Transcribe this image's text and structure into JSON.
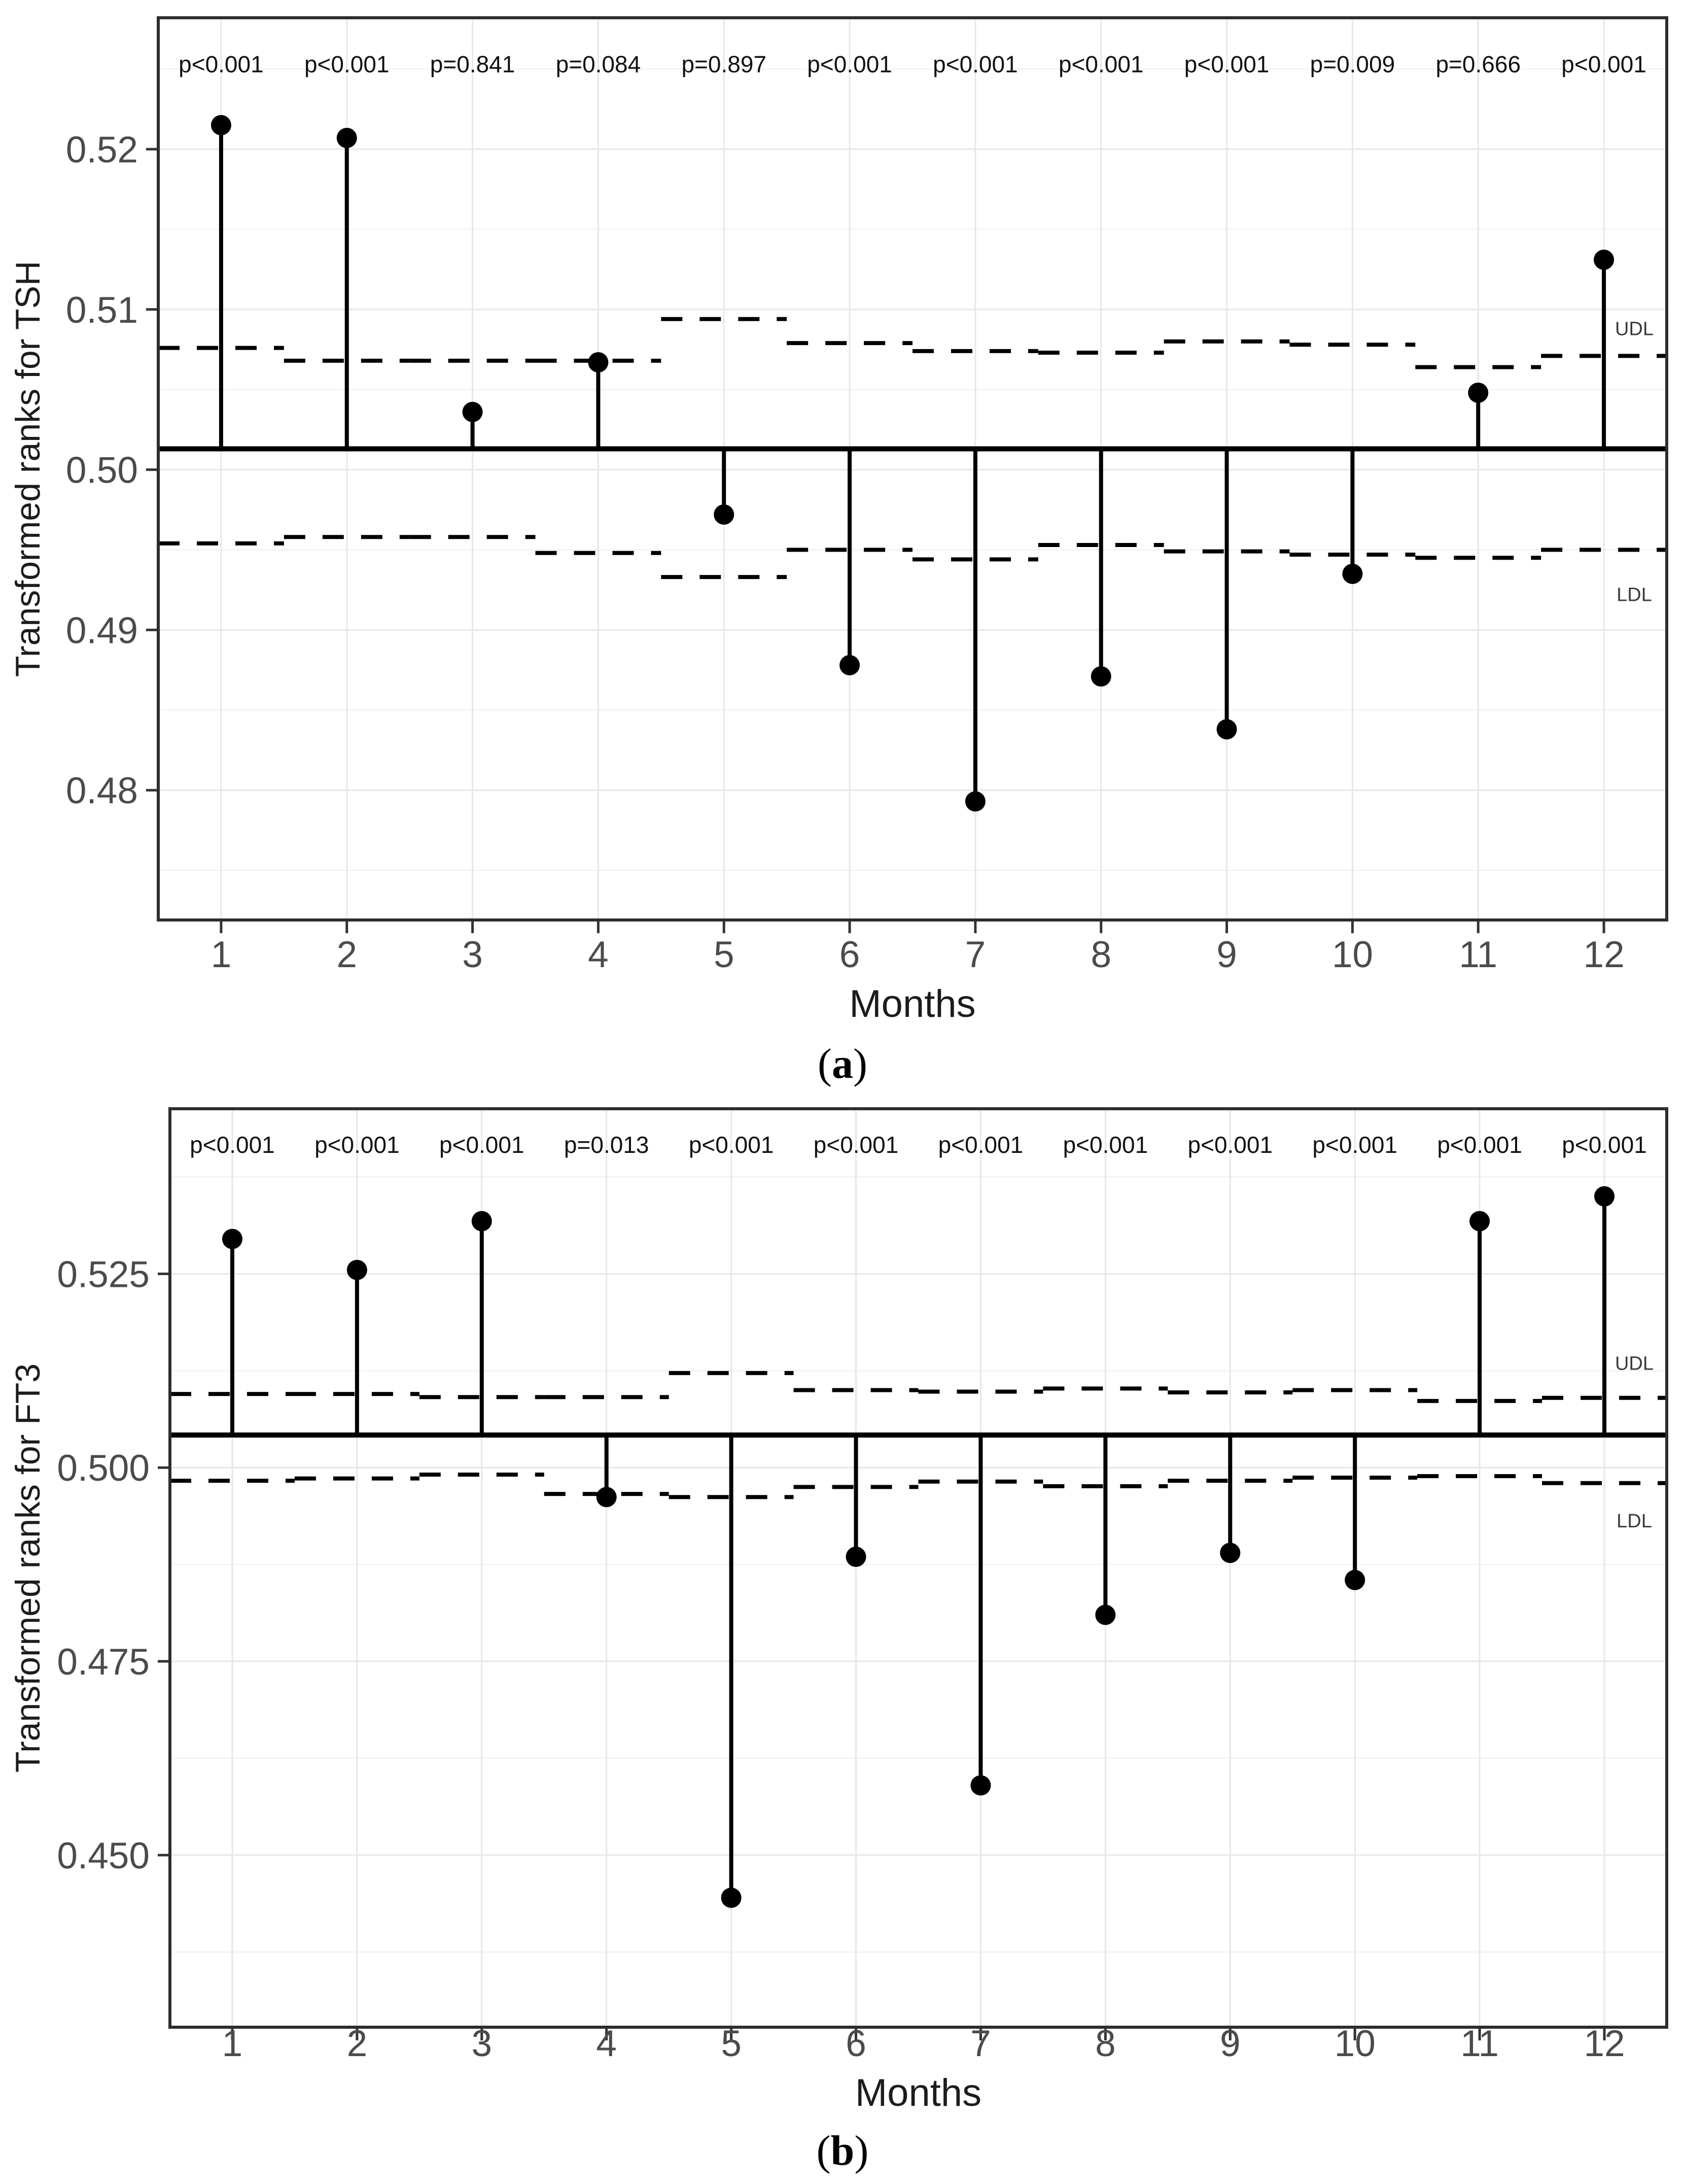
{
  "colors": {
    "background": "#ffffff",
    "panel_background": "#ffffff",
    "panel_border": "#2d2d2d",
    "grid_major": "#e7e7e7",
    "grid_minor": "#f2f2f2",
    "data_black": "#000000",
    "tick_label": "#4b4b4b",
    "axis_title": "#1c1c1c",
    "p_value_text": "#111111",
    "annotation_text": "#3a3a3a"
  },
  "chart_data": [
    {
      "id": "a",
      "type": "stem",
      "title": "",
      "xlabel": "Months",
      "ylabel": "Transformed ranks for TSH",
      "caption_open": "(",
      "caption_letter": "a",
      "caption_close": ")",
      "months": [
        1,
        2,
        3,
        4,
        5,
        6,
        7,
        8,
        9,
        10,
        11,
        12
      ],
      "points": [
        0.5215,
        0.5207,
        0.5036,
        0.5067,
        0.4972,
        0.4878,
        0.4793,
        0.4871,
        0.4838,
        0.4935,
        0.5048,
        0.5131
      ],
      "baseline": 0.5013,
      "udl_steps": [
        0.5076,
        0.5068,
        0.5068,
        0.5068,
        0.5094,
        0.5079,
        0.5074,
        0.5073,
        0.508,
        0.5078,
        0.5064,
        0.5071
      ],
      "ldl_steps": [
        0.4954,
        0.4958,
        0.4958,
        0.4948,
        0.4933,
        0.495,
        0.4944,
        0.4953,
        0.4949,
        0.4947,
        0.4945,
        0.495
      ],
      "p_values": [
        "p<0.001",
        "p<0.001",
        "p=0.841",
        "p=0.084",
        "p=0.897",
        "p<0.001",
        "p<0.001",
        "p<0.001",
        "p<0.001",
        "p=0.009",
        "p=0.666",
        "p<0.001"
      ],
      "yticks": [
        {
          "v": 0.52,
          "label": "0.52"
        },
        {
          "v": 0.51,
          "label": "0.51"
        },
        {
          "v": 0.5,
          "label": "0.50"
        },
        {
          "v": 0.49,
          "label": "0.49"
        },
        {
          "v": 0.48,
          "label": "0.48"
        }
      ],
      "yticks_minor": [
        0.525,
        0.515,
        0.505,
        0.495,
        0.485,
        0.475
      ],
      "ylim": [
        0.4719,
        0.5282
      ],
      "xlim": [
        0.5,
        12.5
      ],
      "grid": true,
      "legend_position": "none",
      "udl_label": "UDL",
      "ldl_label": "LDL",
      "udl_label_v": 0.5084,
      "ldl_label_v": 0.4918,
      "p_row_v": 0.5248
    },
    {
      "id": "b",
      "type": "stem",
      "title": "",
      "xlabel": "Months",
      "ylabel": "Transformed ranks for FT3",
      "caption_open": "(",
      "caption_letter": "b",
      "caption_close": ")",
      "months": [
        1,
        2,
        3,
        4,
        5,
        6,
        7,
        8,
        9,
        10,
        11,
        12
      ],
      "points": [
        0.5295,
        0.5255,
        0.5318,
        0.4962,
        0.4445,
        0.4885,
        0.459,
        0.481,
        0.489,
        0.4855,
        0.5318,
        0.535
      ],
      "baseline": 0.5042,
      "udl_steps": [
        0.5095,
        0.5095,
        0.5091,
        0.5091,
        0.5122,
        0.51,
        0.5098,
        0.5102,
        0.5097,
        0.51,
        0.5086,
        0.509
      ],
      "ldl_steps": [
        0.4983,
        0.4986,
        0.4991,
        0.4966,
        0.4962,
        0.4975,
        0.4982,
        0.4976,
        0.4983,
        0.4987,
        0.4989,
        0.498
      ],
      "p_values": [
        "p<0.001",
        "p<0.001",
        "p<0.001",
        "p=0.013",
        "p<0.001",
        "p<0.001",
        "p<0.001",
        "p<0.001",
        "p<0.001",
        "p<0.001",
        "p<0.001",
        "p<0.001"
      ],
      "yticks": [
        {
          "v": 0.525,
          "label": "0.525"
        },
        {
          "v": 0.5,
          "label": "0.500"
        },
        {
          "v": 0.475,
          "label": "0.475"
        },
        {
          "v": 0.45,
          "label": "0.450"
        }
      ],
      "yticks_minor": [
        0.5375,
        0.5125,
        0.4875,
        0.4625,
        0.4375
      ],
      "ylim": [
        0.4278,
        0.5463
      ],
      "xlim": [
        0.5,
        12.5
      ],
      "grid": true,
      "legend_position": "none",
      "udl_label": "UDL",
      "ldl_label": "LDL",
      "udl_label_v": 0.5126,
      "ldl_label_v": 0.4923,
      "p_row_v": 0.5406
    }
  ]
}
